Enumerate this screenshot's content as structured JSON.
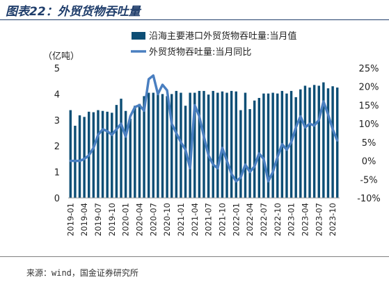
{
  "title": "图表22：外贸货物吞吐量",
  "source": "来源：wind，国金证券研究所",
  "chart_data": {
    "type": "bar",
    "unit_left": "（亿吨）",
    "yleft": {
      "lim": [
        0,
        5
      ],
      "ticks": [
        "0",
        "1",
        "2",
        "3",
        "4",
        "5"
      ]
    },
    "yright": {
      "lim": [
        -10,
        25
      ],
      "ticks": [
        "-10%",
        "-5%",
        "0%",
        "5%",
        "10%",
        "15%",
        "20%",
        "25%"
      ]
    },
    "x_tick_labels": [
      "2019-01",
      "2019-04",
      "2019-07",
      "2019-10",
      "2020-01",
      "2020-04",
      "2020-07",
      "2020-10",
      "2021-01",
      "2021-04",
      "2021-07",
      "2021-10",
      "2022-01",
      "2022-04",
      "2022-07",
      "2022-10",
      "2023-01",
      "2023-04",
      "2023-07",
      "2023-10"
    ],
    "x": [
      "2019-01",
      "2019-02",
      "2019-03",
      "2019-04",
      "2019-05",
      "2019-06",
      "2019-07",
      "2019-08",
      "2019-09",
      "2019-10",
      "2019-11",
      "2019-12",
      "2020-01",
      "2020-02",
      "2020-03",
      "2020-04",
      "2020-05",
      "2020-06",
      "2020-07",
      "2020-08",
      "2020-09",
      "2020-10",
      "2020-11",
      "2020-12",
      "2021-01",
      "2021-02",
      "2021-03",
      "2021-04",
      "2021-05",
      "2021-06",
      "2021-07",
      "2021-08",
      "2021-09",
      "2021-10",
      "2021-11",
      "2021-12",
      "2022-01",
      "2022-02",
      "2022-03",
      "2022-04",
      "2022-05",
      "2022-06",
      "2022-07",
      "2022-08",
      "2022-09",
      "2022-10",
      "2022-11",
      "2022-12",
      "2023-01",
      "2023-02",
      "2023-03",
      "2023-04",
      "2023-05",
      "2023-06",
      "2023-07",
      "2023-08",
      "2023-09",
      "2023-10",
      "2023-11"
    ],
    "series": [
      {
        "name": "沿海主要港口外贸货物吞吐量:当月值",
        "type": "bar",
        "axis": "left",
        "color": "#0d4e75",
        "values": [
          3.38,
          2.78,
          3.18,
          3.12,
          3.32,
          3.3,
          3.38,
          3.35,
          3.32,
          3.28,
          3.58,
          3.82,
          3.35,
          3.05,
          3.55,
          3.62,
          3.92,
          4.05,
          4.05,
          4.05,
          4.0,
          3.92,
          4.0,
          4.12,
          4.05,
          3.55,
          4.05,
          4.05,
          4.12,
          4.12,
          3.98,
          4.12,
          4.05,
          4.1,
          4.05,
          4.12,
          4.1,
          3.38,
          4.05,
          3.42,
          3.75,
          3.85,
          4.02,
          4.02,
          4.05,
          4.02,
          4.12,
          4.02,
          4.12,
          3.88,
          4.18,
          4.32,
          4.25,
          4.35,
          4.32,
          4.45,
          4.22,
          4.3,
          4.25
        ]
      },
      {
        "name": "外贸货物吞吐量:当月同比",
        "type": "line",
        "axis": "right",
        "color": "#4a7fc0",
        "values": [
          0.0,
          0.0,
          0.0,
          0.5,
          1.5,
          3.5,
          7.0,
          8.5,
          8.0,
          7.0,
          8.5,
          10.0,
          6.5,
          12.0,
          14.5,
          15.0,
          13.5,
          22.0,
          23.0,
          18.0,
          20.5,
          19.0,
          10.0,
          7.5,
          5.0,
          3.0,
          -2.0,
          15.0,
          12.0,
          6.5,
          1.5,
          -1.0,
          -2.0,
          3.5,
          0.0,
          -3.5,
          -5.5,
          -4.5,
          -1.0,
          -3.0,
          -1.5,
          2.0,
          0.5,
          -5.5,
          -3.0,
          1.0,
          4.5,
          3.0,
          5.0,
          9.0,
          12.0,
          9.0,
          10.0,
          9.5,
          11.0,
          16.0,
          12.5,
          8.5,
          5.5
        ]
      }
    ],
    "legend_position": "top-center",
    "grid": false
  }
}
